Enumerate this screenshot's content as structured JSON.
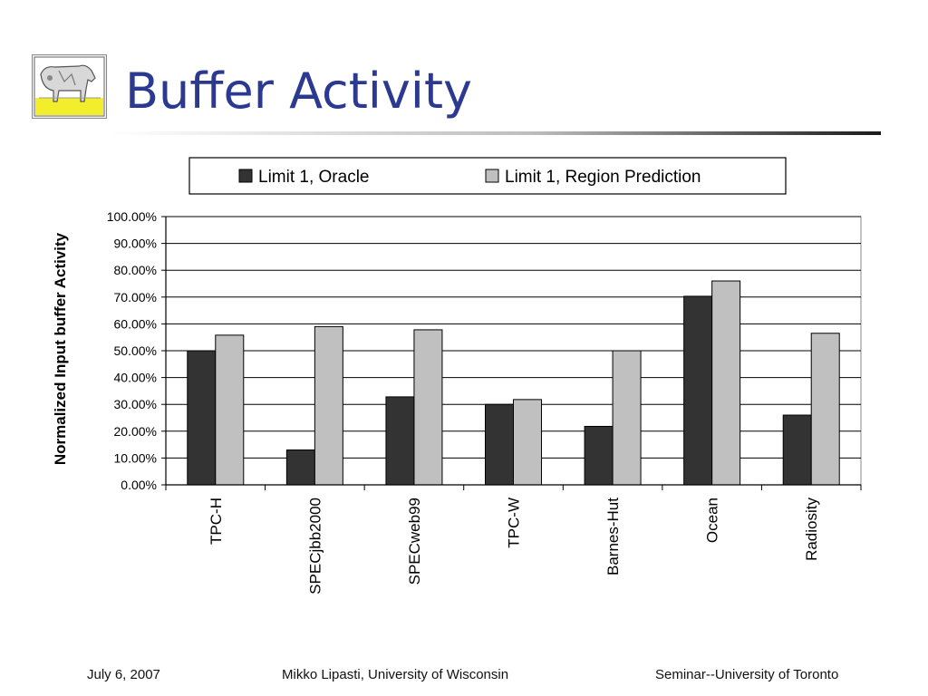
{
  "slide": {
    "title": "Buffer Activity",
    "logo_icon": "cow-painting-icon",
    "title_color": "#2b3990"
  },
  "footer": {
    "date": "July 6, 2007",
    "author": "Mikko Lipasti, University of Wisconsin",
    "venue": "Seminar--University of Toronto"
  },
  "chart_data": {
    "type": "bar",
    "title": "",
    "xlabel": "",
    "ylabel": "Normalized Input buffer Activity",
    "ylim": [
      0,
      100
    ],
    "ytick_step": 10,
    "ytick_labels": [
      "0.00%",
      "10.00%",
      "20.00%",
      "30.00%",
      "40.00%",
      "50.00%",
      "60.00%",
      "70.00%",
      "80.00%",
      "90.00%",
      "100.00%"
    ],
    "categories": [
      "TPC-H",
      "SPECjbb2000",
      "SPECweb99",
      "TPC-W",
      "Barnes-Hut",
      "Ocean",
      "Radiosity"
    ],
    "series": [
      {
        "name": "Limit 1, Oracle",
        "color": "#333333",
        "values": [
          50,
          13,
          32.8,
          30,
          21.8,
          70.3,
          26
        ]
      },
      {
        "name": "Limit 1, Region Prediction",
        "color": "#c0c0c0",
        "values": [
          55.8,
          59,
          57.8,
          31.8,
          50,
          76,
          56.5
        ]
      }
    ],
    "grid": true,
    "legend_position": "top"
  }
}
